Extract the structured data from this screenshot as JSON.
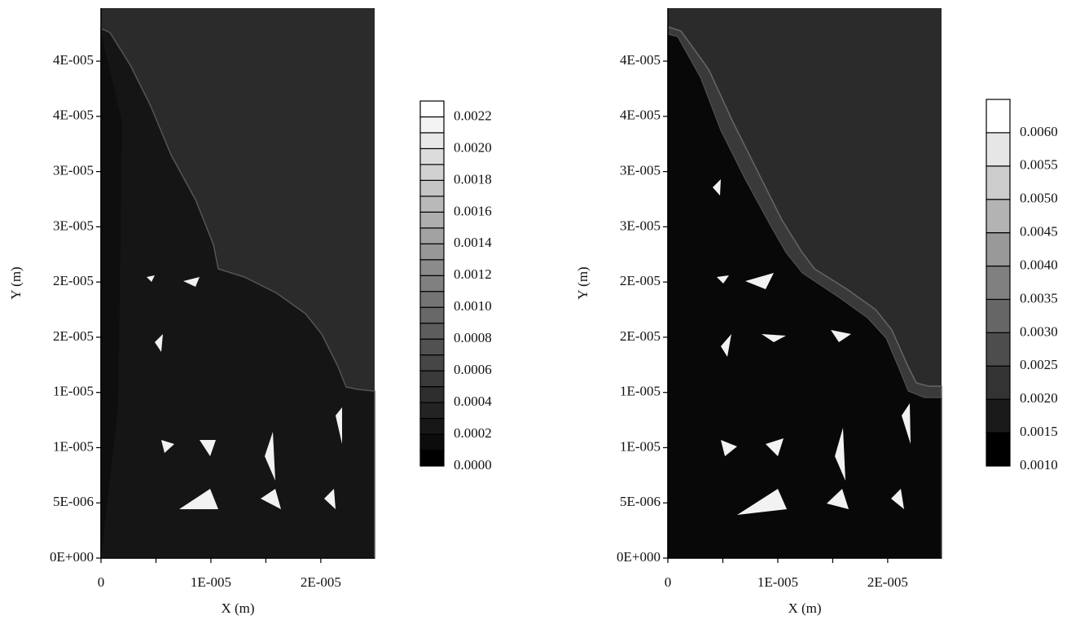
{
  "chart_data": [
    {
      "type": "contour",
      "xlabel": "X (m)",
      "ylabel": "Y (m)",
      "xlim": [
        0,
        2.49e-05
      ],
      "ylim": [
        0,
        4.98e-05
      ],
      "xticks": [
        0,
        {
          "value": 1e-05,
          "label": "1E-005"
        },
        {
          "value": 2e-05,
          "label": "2E-005"
        }
      ],
      "xminorticks": [
        5e-06,
        1.5e-05
      ],
      "yticks": [
        {
          "value": 0,
          "label": "0E+000"
        },
        {
          "value": 5e-06,
          "label": "5E-006"
        },
        {
          "value": 1e-05,
          "label": "1E-005"
        },
        {
          "value": 1.5e-05,
          "label": "1E-005"
        },
        {
          "value": 2e-05,
          "label": "2E-005"
        },
        {
          "value": 2.5e-05,
          "label": "2E-005"
        },
        {
          "value": 3e-05,
          "label": "3E-005"
        },
        {
          "value": 3.5e-05,
          "label": "3E-005"
        },
        {
          "value": 4e-05,
          "label": "4E-005"
        },
        {
          "value": 4.5e-05,
          "label": "4E-005"
        }
      ],
      "colorbar": {
        "colormap": [
          "#000000",
          "#ffffff"
        ],
        "levels": [
          0,
          0.0001,
          0.0002,
          0.0003,
          0.0004,
          0.0005,
          0.0006,
          0.0007,
          0.0008,
          0.0009,
          0.001,
          0.0011,
          0.0012,
          0.0013,
          0.0014,
          0.0015,
          0.0016,
          0.0017,
          0.0018,
          0.0019,
          0.002,
          0.0021,
          0.0022,
          0.0023
        ],
        "ticks": [
          {
            "value": 0,
            "label": "0.0000"
          },
          0.0002,
          0.0004,
          0.0006,
          0.0008,
          {
            "value": 0.001,
            "label": "0.0010"
          },
          0.0012,
          0.0014,
          0.0016,
          0.0018,
          {
            "value": 0.002,
            "label": "0.0020"
          },
          0.0022
        ]
      }
    },
    {
      "type": "contour",
      "xlabel": "X (m)",
      "ylabel": "Y (m)",
      "xlim": [
        0,
        2.49e-05
      ],
      "ylim": [
        0,
        4.98e-05
      ],
      "xticks": [
        0,
        {
          "value": 1e-05,
          "label": "1E-005"
        },
        {
          "value": 2e-05,
          "label": "2E-005"
        }
      ],
      "xminorticks": [
        5e-06,
        1.5e-05
      ],
      "yticks": [
        {
          "value": 0,
          "label": "0E+000"
        },
        {
          "value": 5e-06,
          "label": "5E-006"
        },
        {
          "value": 1e-05,
          "label": "1E-005"
        },
        {
          "value": 1.5e-05,
          "label": "1E-005"
        },
        {
          "value": 2e-05,
          "label": "2E-005"
        },
        {
          "value": 2.5e-05,
          "label": "2E-005"
        },
        {
          "value": 3e-05,
          "label": "3E-005"
        },
        {
          "value": 3.5e-05,
          "label": "3E-005"
        },
        {
          "value": 4e-05,
          "label": "4E-005"
        },
        {
          "value": 4.5e-05,
          "label": "4E-005"
        }
      ],
      "colorbar": {
        "colormap": [
          "#000000",
          "#ffffff"
        ],
        "levels": [
          0.001,
          0.0015,
          0.002,
          0.0025,
          0.003,
          0.0035,
          0.004,
          0.0045,
          0.005,
          0.0055,
          0.006,
          0.0065
        ],
        "ticks": [
          {
            "value": 0.001,
            "label": "0.0010"
          },
          0.0015,
          {
            "value": 0.002,
            "label": "0.0020"
          },
          0.0025,
          {
            "value": 0.003,
            "label": "0.0030"
          },
          0.0035,
          {
            "value": 0.004,
            "label": "0.0040"
          },
          0.0045,
          {
            "value": 0.005,
            "label": "0.0050"
          },
          0.0055,
          {
            "value": 0.006,
            "label": "0.0060"
          }
        ]
      }
    }
  ]
}
